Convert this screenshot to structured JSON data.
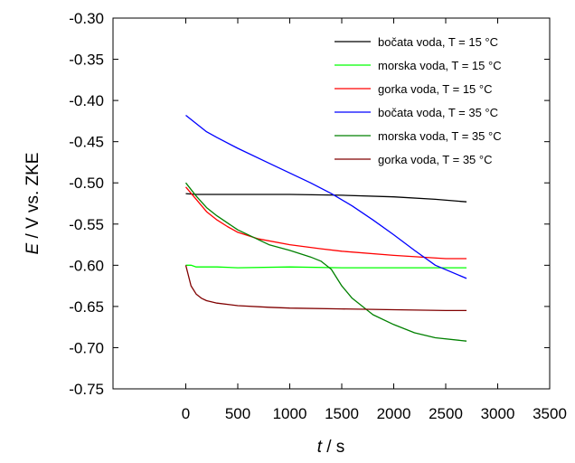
{
  "chart_data": {
    "type": "line",
    "title": "",
    "xlabel": "t / s",
    "ylabel": "E / V vs. ZKE",
    "xlim": [
      -700,
      3500
    ],
    "ylim": [
      -0.75,
      -0.3
    ],
    "xticks": [
      0,
      500,
      1000,
      1500,
      2000,
      2500,
      3000,
      3500
    ],
    "yticks": [
      -0.75,
      -0.7,
      -0.65,
      -0.6,
      -0.55,
      -0.5,
      -0.45,
      -0.4,
      -0.35,
      -0.3
    ],
    "xtick_labels": [
      "0",
      "500",
      "1000",
      "1500",
      "2000",
      "2500",
      "3000",
      "3500"
    ],
    "ytick_labels": [
      "-0.75",
      "-0.70",
      "-0.65",
      "-0.60",
      "-0.55",
      "-0.50",
      "-0.45",
      "-0.40",
      "-0.35",
      "-0.30"
    ],
    "grid": false,
    "legend_position": "top-right",
    "series": [
      {
        "name": "bočata voda, T = 15 °C",
        "color": "#000000",
        "x": [
          0,
          100,
          500,
          1000,
          1500,
          2000,
          2400,
          2700
        ],
        "y": [
          -0.513,
          -0.514,
          -0.514,
          -0.514,
          -0.515,
          -0.517,
          -0.52,
          -0.523
        ]
      },
      {
        "name": "morska voda, T = 15 °C",
        "color": "#00ff00",
        "x": [
          0,
          50,
          100,
          300,
          500,
          1000,
          1500,
          2000,
          2500,
          2700
        ],
        "y": [
          -0.6,
          -0.6,
          -0.602,
          -0.602,
          -0.603,
          -0.602,
          -0.603,
          -0.603,
          -0.603,
          -0.603
        ]
      },
      {
        "name": "gorka voda, T = 15 °C",
        "color": "#ff0000",
        "x": [
          0,
          100,
          200,
          300,
          400,
          500,
          700,
          1000,
          1300,
          1500,
          2000,
          2500,
          2700
        ],
        "y": [
          -0.505,
          -0.52,
          -0.535,
          -0.545,
          -0.553,
          -0.56,
          -0.568,
          -0.575,
          -0.58,
          -0.583,
          -0.588,
          -0.592,
          -0.592
        ]
      },
      {
        "name": "bočata voda, T = 35 °C",
        "color": "#0000ff",
        "x": [
          0,
          100,
          200,
          300,
          500,
          800,
          1000,
          1200,
          1400,
          1600,
          1800,
          2000,
          2200,
          2400,
          2700
        ],
        "y": [
          -0.418,
          -0.428,
          -0.438,
          -0.445,
          -0.458,
          -0.476,
          -0.488,
          -0.5,
          -0.513,
          -0.528,
          -0.545,
          -0.563,
          -0.582,
          -0.6,
          -0.616
        ]
      },
      {
        "name": "morska voda, T = 35 °C",
        "color": "#008000",
        "x": [
          0,
          100,
          200,
          300,
          500,
          800,
          1000,
          1200,
          1300,
          1400,
          1500,
          1600,
          1800,
          2000,
          2200,
          2400,
          2700
        ],
        "y": [
          -0.5,
          -0.516,
          -0.53,
          -0.54,
          -0.557,
          -0.575,
          -0.582,
          -0.59,
          -0.595,
          -0.605,
          -0.625,
          -0.64,
          -0.66,
          -0.672,
          -0.682,
          -0.688,
          -0.692
        ]
      },
      {
        "name": "gorka voda, T = 35 °C",
        "color": "#800000",
        "x": [
          0,
          20,
          50,
          100,
          150,
          200,
          300,
          500,
          800,
          1000,
          1500,
          2000,
          2500,
          2700
        ],
        "y": [
          -0.6,
          -0.61,
          -0.625,
          -0.635,
          -0.64,
          -0.643,
          -0.646,
          -0.649,
          -0.651,
          -0.652,
          -0.653,
          -0.654,
          -0.655,
          -0.655
        ]
      }
    ]
  }
}
